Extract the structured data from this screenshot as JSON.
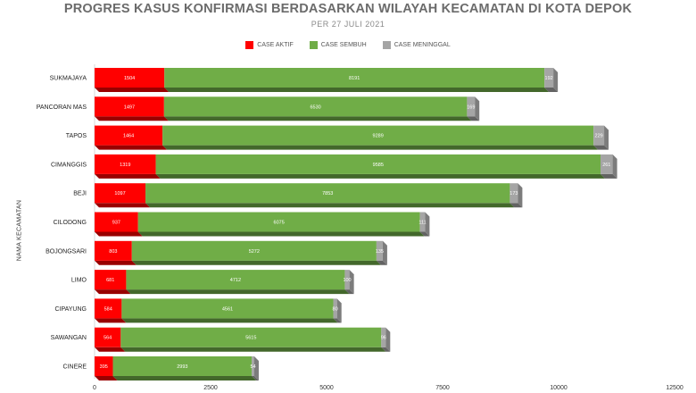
{
  "chart_data": {
    "type": "bar",
    "orientation": "horizontal",
    "stacked": true,
    "title": "PROGRES KASUS KONFIRMASI BERDASARKAN WILAYAH KECAMATAN DI KOTA DEPOK",
    "subtitle": "PER 27 JULI 2021",
    "ylabel": "NAMA KECAMATAN",
    "xlabel": "",
    "xlim": [
      0,
      12500
    ],
    "xticks": [
      "0",
      "2500",
      "5000",
      "7500",
      "10000",
      "12500"
    ],
    "legend_position": "top",
    "categories": [
      "SUKMAJAYA",
      "PANCORAN MAS",
      "TAPOS",
      "CIMANGGIS",
      "BEJI",
      "CILODONG",
      "BOJONGSARI",
      "LIMO",
      "CIPAYUNG",
      "SAWANGAN",
      "CINERE"
    ],
    "series": [
      {
        "name": "CASE AKTIF",
        "color": "#ff0000",
        "values": [
          1504,
          1497,
          1464,
          1319,
          1097,
          937,
          803,
          681,
          584,
          564,
          395
        ],
        "labels": [
          "1504",
          "1497",
          "1464",
          "1319",
          "1097",
          "937",
          "803",
          "681",
          "584",
          "564",
          "395"
        ]
      },
      {
        "name": "CASE SEMBUH",
        "color": "#70ad47",
        "values": [
          8191,
          6530,
          9289,
          9585,
          7853,
          6075,
          5272,
          4712,
          4561,
          5615,
          2993
        ],
        "labels": [
          "8191",
          "6530",
          "9289",
          "9585",
          "7853",
          "6075",
          "5272",
          "4712",
          "4561",
          "5615",
          "2993"
        ]
      },
      {
        "name": "CASE MENINGGAL",
        "color": "#a5a5a5",
        "values": [
          192,
          169,
          229,
          261,
          173,
          111,
          135,
          100,
          80,
          96,
          54
        ],
        "labels": [
          "192",
          "169",
          "229",
          "261",
          "173",
          "111",
          "135",
          "100",
          "80",
          "96",
          "54"
        ]
      }
    ]
  }
}
